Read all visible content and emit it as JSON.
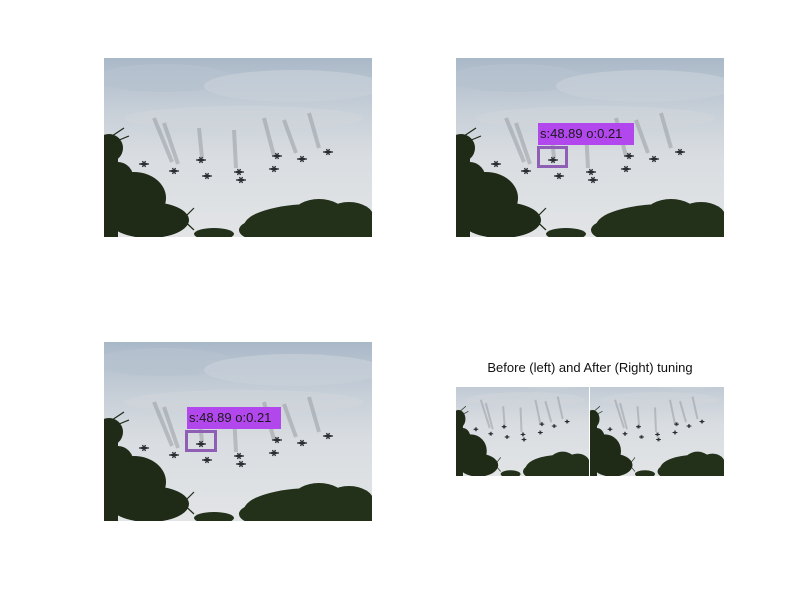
{
  "figure": {
    "subplot_title": "Before (left) and After (Right) tuning",
    "panels": [
      {
        "id": "original-photo",
        "description_icon": "aircraft-formation-photo"
      },
      {
        "id": "detection-top-right",
        "label": "s:48.89 o:0.21"
      },
      {
        "id": "detection-bottom-left",
        "label": "s:48.89 o:0.21"
      },
      {
        "id": "comparison-before-after"
      }
    ],
    "colors": {
      "box_border": "#8e5fb5",
      "label_background": "#b347ee",
      "sky": "#d4d8dc",
      "foliage": "#1f2a17"
    }
  }
}
